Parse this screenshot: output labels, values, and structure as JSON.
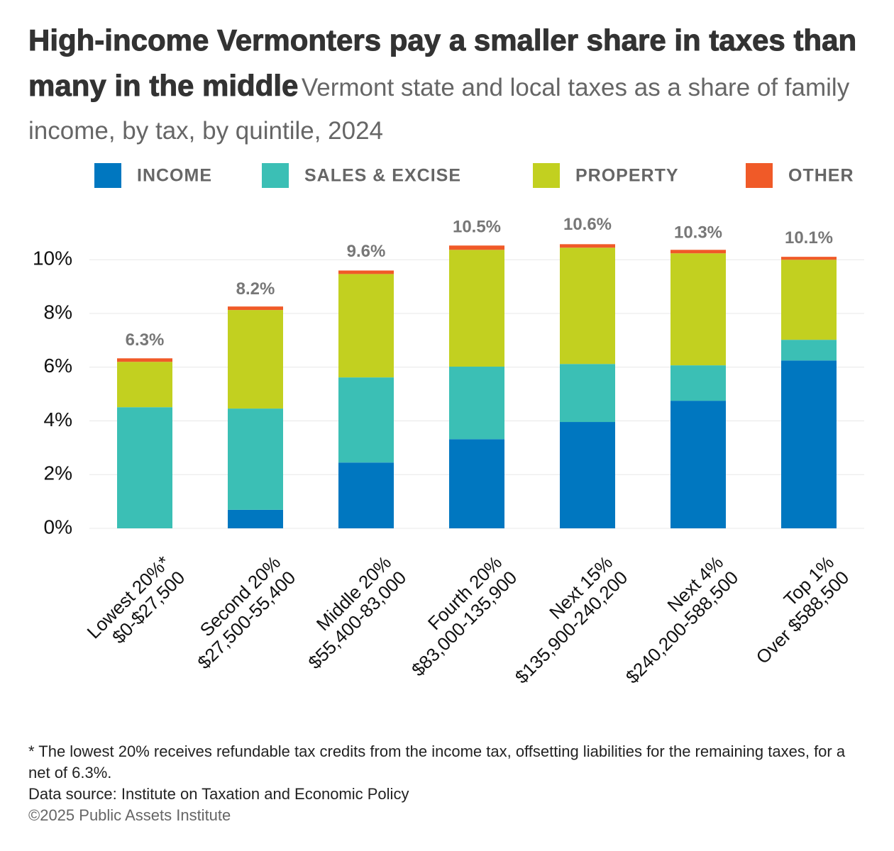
{
  "chart_data": {
    "type": "stacked_bar",
    "title": "High-income Vermonters pay a smaller share in taxes than many in the middle",
    "subtitle": "Vermont state and local taxes as a share of family income, by tax, by quintile, 2024",
    "categories": [
      [
        "Lowest 20%*",
        "$0-$27,500"
      ],
      [
        "Second 20%",
        "$27,500-55,400"
      ],
      [
        "Middle 20%",
        "$55,400-83,000"
      ],
      [
        "Fourth 20%",
        "$83,000-135,900"
      ],
      [
        "Next 15%",
        "$135,900-240,200"
      ],
      [
        "Next 4%",
        "$240,200-588,500"
      ],
      [
        "Top 1%",
        "Over $588,500"
      ]
    ],
    "series": [
      {
        "name": "INCOME",
        "color": "#0077c0",
        "values": [
          0,
          0.69,
          2.45,
          3.32,
          3.96,
          4.75,
          6.25
        ]
      },
      {
        "name": "SALES & EXCISE",
        "color": "#3bbfb5",
        "values": [
          4.51,
          3.77,
          3.17,
          2.7,
          2.16,
          1.32,
          0.77
        ]
      },
      {
        "name": "PROPERTY",
        "color": "#c2d020",
        "values": [
          1.69,
          3.67,
          3.85,
          4.35,
          4.33,
          4.17,
          2.98
        ]
      },
      {
        "name": "OTHER",
        "color": "#f05a28",
        "values": [
          0.13,
          0.13,
          0.13,
          0.16,
          0.13,
          0.13,
          0.11
        ]
      }
    ],
    "totals": {
      "values": [
        6.3,
        8.2,
        9.6,
        10.5,
        10.6,
        10.3,
        10.1
      ],
      "value_labels": [
        "6.3%",
        "8.2%",
        "9.6%",
        "10.5%",
        "10.6%",
        "10.3%",
        "10.1%"
      ]
    },
    "ylim": [
      0,
      10.8
    ],
    "yticks": [
      {
        "value": 0,
        "label": "0%"
      },
      {
        "value": 2,
        "label": "2%"
      },
      {
        "value": 4,
        "label": "4%"
      },
      {
        "value": 6,
        "label": "6%"
      },
      {
        "value": 8,
        "label": "8%"
      },
      {
        "value": 10,
        "label": "10%"
      }
    ],
    "grid": true,
    "legend": "top",
    "notes": [
      "* The lowest 20% receives refundable tax credits from the income tax, offsetting liabilities for the remaining taxes, for a net of 6.3%.",
      "Data source: Institute on Taxation and Economic Policy",
      "©2025 Public Assets Institute"
    ]
  }
}
